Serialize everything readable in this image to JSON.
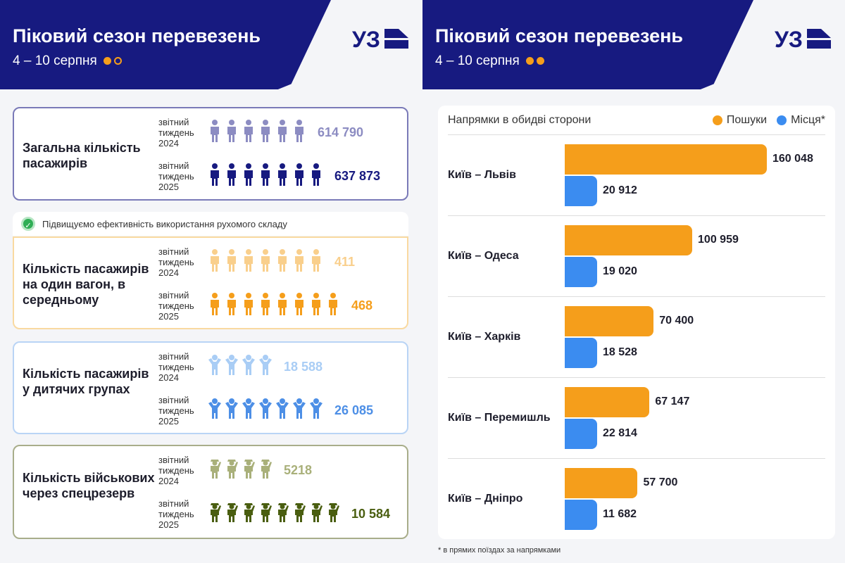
{
  "header": {
    "title": "Піковий сезон перевезень",
    "dates": "4 – 10 серпня",
    "logo_text": "УЗ"
  },
  "colors": {
    "navy": "#171a80",
    "orange": "#f59e1b",
    "blue": "#3b8cf0",
    "green": "#4a5e10"
  },
  "period_label": [
    "звітний",
    "тиждень"
  ],
  "note": "Підвищуємо ефективність використання рухомого складу",
  "cards": [
    {
      "title": "Загальна кількість пасажирів",
      "icon": "person-icon",
      "border": "#7a7ab8",
      "rows": [
        {
          "year": "2024",
          "value": "614 790",
          "icons": 6,
          "color": "#8c8cc2"
        },
        {
          "year": "2025",
          "value": "637 873",
          "icons": 7,
          "color": "#171a80"
        }
      ]
    },
    {
      "title": "Кількість пасажирів на один вагон, в середньому",
      "icon": "person-icon",
      "border": "#f9d9a0",
      "rows": [
        {
          "year": "2024",
          "value": "411",
          "icons": 7,
          "color": "#f9cf8c"
        },
        {
          "year": "2025",
          "value": "468",
          "icons": 8,
          "color": "#f59e1b"
        }
      ]
    },
    {
      "title": "Кількість пасажирів у дитячих групах",
      "icon": "child-icon",
      "border": "#b9d4f5",
      "rows": [
        {
          "year": "2024",
          "value": "18 588",
          "icons": 4,
          "color": "#a9cdf5"
        },
        {
          "year": "2025",
          "value": "26 085",
          "icons": 7,
          "color": "#4d8fe6"
        }
      ]
    },
    {
      "title": "Кількість військових через спецрезерв",
      "icon": "soldier-icon",
      "border": "#a8ad8a",
      "rows": [
        {
          "year": "2024",
          "value": "5218",
          "icons": 4,
          "color": "#a9b07a"
        },
        {
          "year": "2025",
          "value": "10 584",
          "icons": 8,
          "color": "#4a5e10"
        }
      ]
    }
  ],
  "chart_data": {
    "type": "bar",
    "orientation": "horizontal",
    "title": "Напрямки в обидві сторони",
    "legend_position": "top-right",
    "categories": [
      "Київ – Львів",
      "Київ – Одеса",
      "Київ – Харків",
      "Київ – Перемишль",
      "Київ – Дніпро"
    ],
    "series": [
      {
        "name": "Пошуки",
        "color": "#f59e1b",
        "values": [
          160048,
          100959,
          70400,
          67147,
          57700
        ],
        "labels": [
          "160 048",
          "100 959",
          "70 400",
          "67 147",
          "57 700"
        ]
      },
      {
        "name": "Місця*",
        "color": "#3b8cf0",
        "values": [
          20912,
          19020,
          18528,
          22814,
          11682
        ],
        "labels": [
          "20 912",
          "19 020",
          "18 528",
          "22 814",
          "11 682"
        ]
      }
    ]
  },
  "footnote": "* в прямих поїздах за напрямками"
}
